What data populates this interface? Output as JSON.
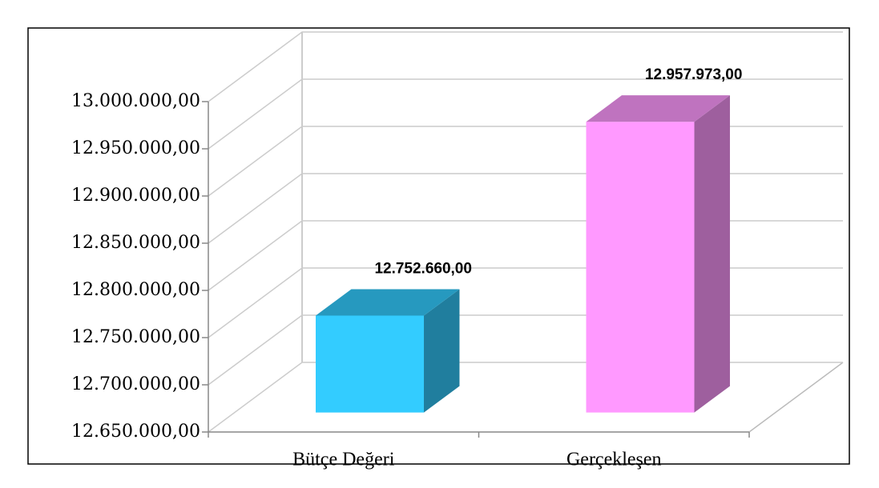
{
  "chart_data": {
    "type": "bar3d",
    "categories": [
      "Bütçe Değeri",
      "Gerçekleşen"
    ],
    "values": [
      12752660,
      12957973
    ],
    "value_labels": [
      "12.752.660,00",
      "12.957.973,00"
    ],
    "colors": [
      "#33ccff",
      "#ff99ff"
    ],
    "ylim": [
      12650000,
      13000000
    ],
    "yticks": [
      {
        "value": 12650000,
        "label": "12.650.000,00"
      },
      {
        "value": 12700000,
        "label": "12.700.000,00"
      },
      {
        "value": 12750000,
        "label": "12.750.000,00"
      },
      {
        "value": 12800000,
        "label": "12.800.000,00"
      },
      {
        "value": 12850000,
        "label": "12.850.000,00"
      },
      {
        "value": 12900000,
        "label": "12.900.000,00"
      },
      {
        "value": 12950000,
        "label": "12.950.000,00"
      },
      {
        "value": 13000000,
        "label": "13.000.000,00"
      }
    ],
    "grid": true
  }
}
